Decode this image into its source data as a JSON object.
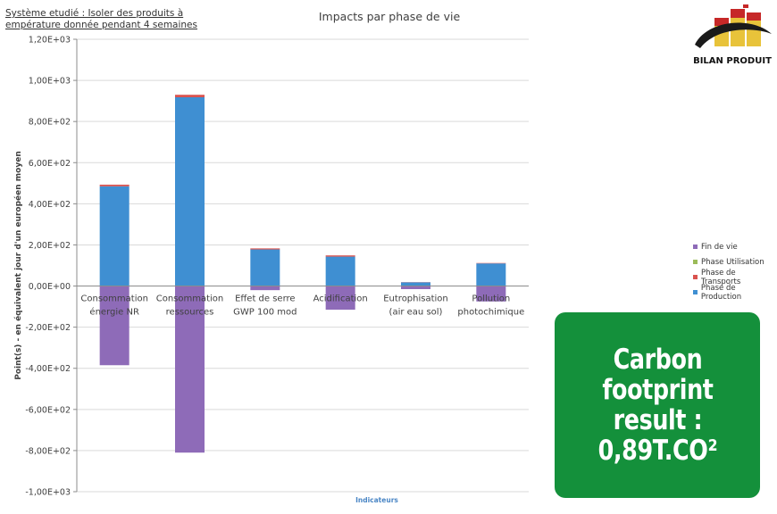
{
  "header": {
    "system_line1": "Système etudié : Isoler des produits à",
    "system_line2": "empérature donnée pendant 4 semaines"
  },
  "logo": {
    "label": "BILAN PRODUIT"
  },
  "carbon_box": {
    "line1": "Carbon",
    "line2": "footprint",
    "line3": "result :",
    "line4": "0,89T.CO²",
    "color": "#14903b"
  },
  "chart_data": {
    "type": "bar",
    "stacked": true,
    "title": "Impacts par phase de vie",
    "xlabel": "Indicateurs",
    "ylabel": "Point(s) - en équivalent jour d'un européen moyen",
    "ylim": [
      -1000,
      1200
    ],
    "yticks": [
      "1,20E+03",
      "1,00E+03",
      "8,00E+02",
      "6,00E+02",
      "4,00E+02",
      "2,00E+02",
      "0,00E+00",
      "-2,00E+02",
      "-4,00E+02",
      "-6,00E+02",
      "-8,00E+02",
      "-1,00E+03"
    ],
    "ytick_values": [
      1200,
      1000,
      800,
      600,
      400,
      200,
      0,
      -200,
      -400,
      -600,
      -800,
      -1000
    ],
    "grid": true,
    "legend_position": "right",
    "categories": [
      [
        "Consommation",
        "énergie NR"
      ],
      [
        "Consommation",
        "ressources"
      ],
      [
        "Effet de serre",
        "GWP 100 mod"
      ],
      [
        "Acidification"
      ],
      [
        "Eutrophisation",
        "(air eau sol)"
      ],
      [
        "Pollution",
        "photochimique"
      ]
    ],
    "series": [
      {
        "name": "Fin de vie",
        "color": "#8e6bb8",
        "values": [
          -385,
          -810,
          -20,
          -115,
          -15,
          -75
        ]
      },
      {
        "name": "Phase Utilisation",
        "color": "#9bbb59",
        "values": [
          0,
          0,
          0,
          0,
          0,
          0
        ]
      },
      {
        "name": "Phase de Transports",
        "color": "#d9534f",
        "values": [
          8,
          12,
          5,
          6,
          1,
          2
        ]
      },
      {
        "name": "Phase de Production",
        "color": "#3f8fd2",
        "values": [
          485,
          918,
          178,
          143,
          18,
          110
        ]
      }
    ],
    "legend_order": [
      "Fin de vie",
      "Phase Utilisation",
      "Phase de Transports",
      "Phase de Production"
    ]
  }
}
